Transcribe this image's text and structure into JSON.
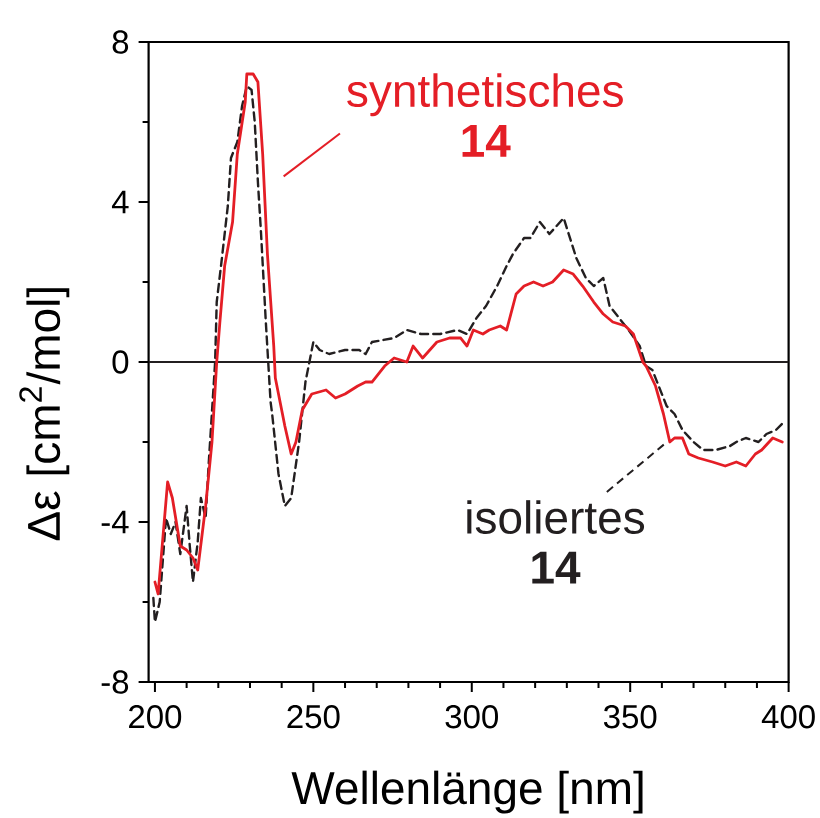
{
  "chart_data": {
    "type": "line",
    "xlabel": "Wellenlänge [nm]",
    "ylabel": "Δε [cm$^{2}$/mol]",
    "xlim": [
      198,
      400
    ],
    "xticks": [
      200,
      {
        "value": 210,
        "label": null
      },
      {
        "value": 220,
        "label": null
      },
      {
        "value": 230,
        "label": null
      },
      {
        "value": 240,
        "label": null
      },
      250,
      {
        "value": 260,
        "label": null
      },
      {
        "value": 270,
        "label": null
      },
      {
        "value": 280,
        "label": null
      },
      {
        "value": 290,
        "label": null
      },
      300,
      {
        "value": 310,
        "label": null
      },
      {
        "value": 320,
        "label": null
      },
      {
        "value": 330,
        "label": null
      },
      {
        "value": 340,
        "label": null
      },
      350,
      {
        "value": 360,
        "label": null
      },
      {
        "value": 370,
        "label": null
      },
      {
        "value": 380,
        "label": null
      },
      {
        "value": 390,
        "label": null
      },
      400
    ],
    "ylim": [
      -8,
      8
    ],
    "yticks": [
      -8,
      {
        "value": -6,
        "label": null
      },
      -4,
      {
        "value": -2,
        "label": null
      },
      0,
      {
        "value": 2,
        "label": null
      },
      4,
      {
        "value": 6,
        "label": null
      },
      8
    ],
    "ref_lines": [
      {
        "axis": "y",
        "value": 0,
        "color": "#231f20"
      }
    ],
    "series": [
      {
        "name": "synthetisches **14**",
        "color": "#e41e26",
        "line_style": "solid",
        "x": [
          200,
          201,
          204,
          205.5,
          208,
          210,
          212,
          213.5,
          216,
          218,
          219.5,
          220.5,
          222,
          224.5,
          226,
          228.5,
          229,
          231,
          232.5,
          234,
          235.5,
          237.5,
          238,
          241,
          243,
          244.5,
          246.5,
          249.5,
          254,
          257,
          260,
          264,
          266.5,
          268.5,
          272.5,
          275.5,
          279.5,
          281.5,
          284.5,
          289,
          293,
          296.5,
          298.5,
          300.5,
          303.5,
          305.5,
          309,
          311,
          314,
          316.5,
          319.5,
          322.5,
          325.5,
          329,
          332,
          335,
          338.5,
          341.5,
          344.5,
          348.5,
          351,
          354,
          355,
          358,
          360.5,
          362.5,
          364,
          366.5,
          368.5,
          371.5,
          376,
          380,
          383.5,
          386.5,
          389.5,
          391.5,
          395,
          398
        ],
        "values": [
          -5.5,
          -5.8,
          -3.0,
          -3.4,
          -4.6,
          -4.7,
          -4.9,
          -5.2,
          -3.6,
          -2.0,
          0.0,
          1.0,
          2.4,
          3.5,
          5.2,
          6.5,
          7.2,
          7.2,
          7.0,
          5.2,
          2.7,
          0.4,
          -0.4,
          -1.6,
          -2.3,
          -2.0,
          -1.2,
          -0.8,
          -0.7,
          -0.9,
          -0.8,
          -0.6,
          -0.5,
          -0.5,
          -0.1,
          0.1,
          0.0,
          0.4,
          0.1,
          0.5,
          0.6,
          0.6,
          0.4,
          0.8,
          0.7,
          0.8,
          0.9,
          0.8,
          1.7,
          1.9,
          2.0,
          1.9,
          2.0,
          2.3,
          2.2,
          1.9,
          1.5,
          1.2,
          1.0,
          0.9,
          0.7,
          0.0,
          -0.1,
          -0.6,
          -1.3,
          -2.0,
          -1.9,
          -1.9,
          -2.3,
          -2.4,
          -2.5,
          -2.6,
          -2.5,
          -2.6,
          -2.3,
          -2.2,
          -1.9,
          -2.0
        ]
      },
      {
        "name": "isoliertes **14**",
        "color": "#231f20",
        "line_style": "dashed",
        "x": [
          199.5,
          200,
          201.5,
          203.5,
          205,
          206.5,
          208,
          210,
          211,
          212,
          213.5,
          214.5,
          216,
          217,
          219,
          219.5,
          221,
          223,
          224,
          226,
          227.5,
          229,
          230.5,
          231.5,
          232.5,
          233.5,
          235,
          236.5,
          237,
          239,
          241,
          243,
          245.5,
          247.5,
          250,
          252,
          255,
          260,
          264.5,
          266.5,
          268.5,
          275.5,
          279.5,
          284,
          290,
          295.5,
          298.5,
          301.5,
          304.5,
          308,
          311,
          313,
          316.5,
          318.5,
          321.5,
          324.5,
          329,
          331,
          333,
          336,
          338.5,
          341.5,
          343.5,
          346.5,
          349.5,
          353,
          355,
          357,
          359,
          361.5,
          364,
          366.5,
          370,
          373,
          377,
          381.5,
          383.5,
          386.5,
          390.5,
          393,
          396,
          398.5
        ],
        "values": [
          -5.9,
          -6.5,
          -6.0,
          -3.9,
          -4.3,
          -4.0,
          -4.8,
          -3.6,
          -4.6,
          -5.5,
          -4.5,
          -3.4,
          -3.9,
          -2.5,
          0.0,
          1.5,
          2.5,
          3.9,
          5.1,
          5.5,
          6.4,
          6.9,
          6.8,
          6.0,
          4.5,
          3.2,
          1.0,
          -1.0,
          -1.3,
          -2.8,
          -3.6,
          -3.4,
          -2.0,
          -0.5,
          0.5,
          0.3,
          0.2,
          0.3,
          0.3,
          0.2,
          0.5,
          0.6,
          0.8,
          0.7,
          0.7,
          0.8,
          0.7,
          1.1,
          1.4,
          1.9,
          2.4,
          2.7,
          3.1,
          3.1,
          3.5,
          3.2,
          3.6,
          3.1,
          2.6,
          2.1,
          1.9,
          2.1,
          1.4,
          1.1,
          0.8,
          0.4,
          -0.1,
          -0.2,
          -0.6,
          -1.1,
          -1.3,
          -1.7,
          -2.0,
          -2.2,
          -2.2,
          -2.1,
          -2.0,
          -1.9,
          -2.0,
          -1.8,
          -1.7,
          -1.5
        ]
      }
    ]
  }
}
